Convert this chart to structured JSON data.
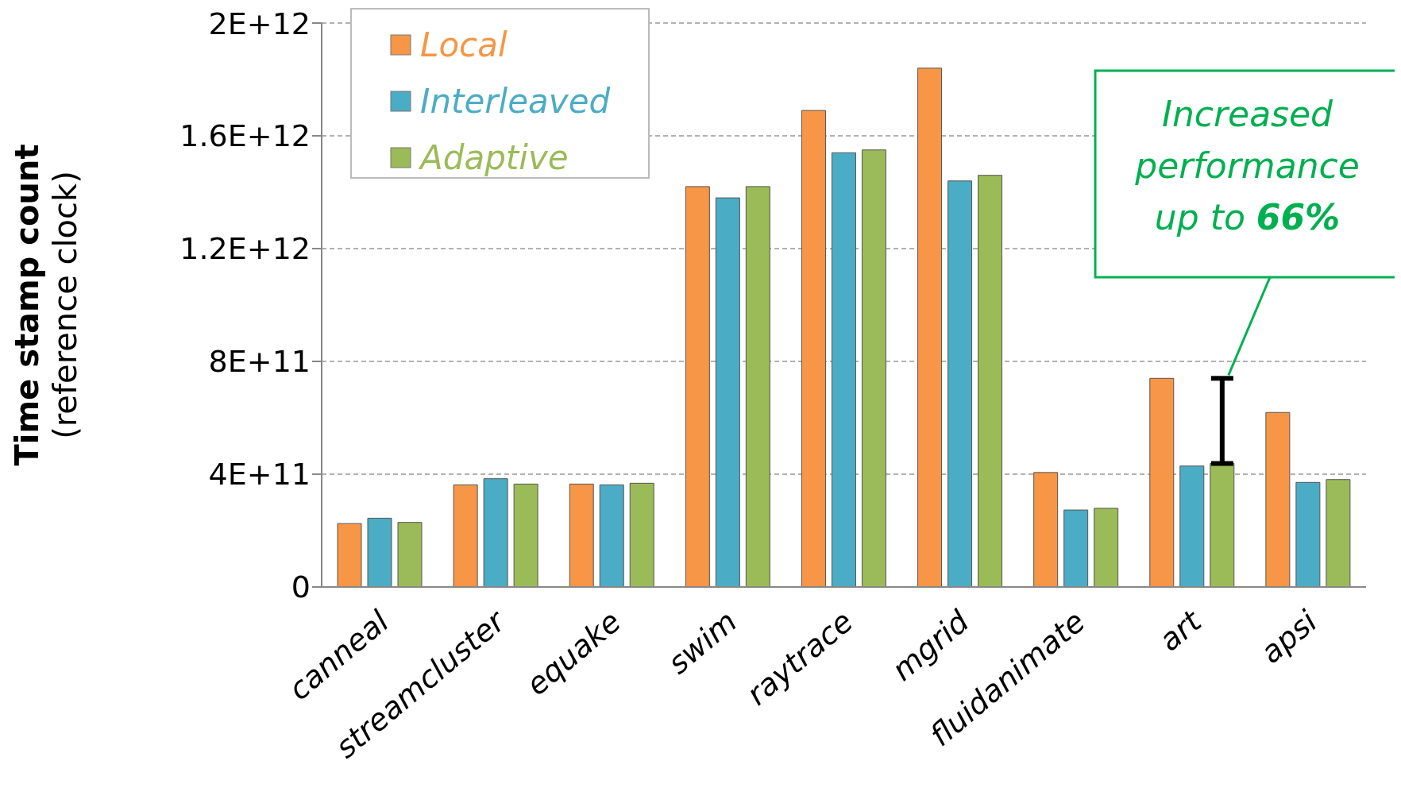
{
  "chart_data": {
    "type": "bar",
    "ylabel": "Time stamp count\n(reference clock)",
    "categories": [
      "canneal",
      "streamcluster",
      "equake",
      "swim",
      "raytrace",
      "mgrid",
      "fluidanimate",
      "art",
      "apsi"
    ],
    "series": [
      {
        "name": "Local",
        "color": "#f79646",
        "values": [
          225000000000.0,
          362000000000.0,
          365000000000.0,
          1420000000000.0,
          1690000000000.0,
          1840000000000.0,
          406000000000.0,
          740000000000.0,
          619000000000.0
        ]
      },
      {
        "name": "Interleaved",
        "color": "#4bacc6",
        "values": [
          244000000000.0,
          384000000000.0,
          362000000000.0,
          1380000000000.0,
          1540000000000.0,
          1440000000000.0,
          273000000000.0,
          429000000000.0,
          371000000000.0
        ]
      },
      {
        "name": "Adaptive",
        "color": "#9bbb59",
        "values": [
          229000000000.0,
          365000000000.0,
          368000000000.0,
          1420000000000.0,
          1550000000000.0,
          1460000000000.0,
          279000000000.0,
          438000000000.0,
          381000000000.0
        ]
      }
    ],
    "ylim": [
      0,
      2000000000000.0
    ],
    "yticks": [
      0,
      {
        "value": 400000000000.0,
        "label": "4E+11"
      },
      {
        "value": 800000000000.0,
        "label": "8E+11"
      },
      {
        "value": 1200000000000.0,
        "label": "1.2E+12"
      },
      {
        "value": 1600000000000.0,
        "label": "1.6E+12"
      },
      {
        "value": 2000000000000.0,
        "label": "2E+12"
      }
    ],
    "grid": "y",
    "legend": "top left",
    "annotations": [
      "Increased performance up to 66%"
    ]
  }
}
